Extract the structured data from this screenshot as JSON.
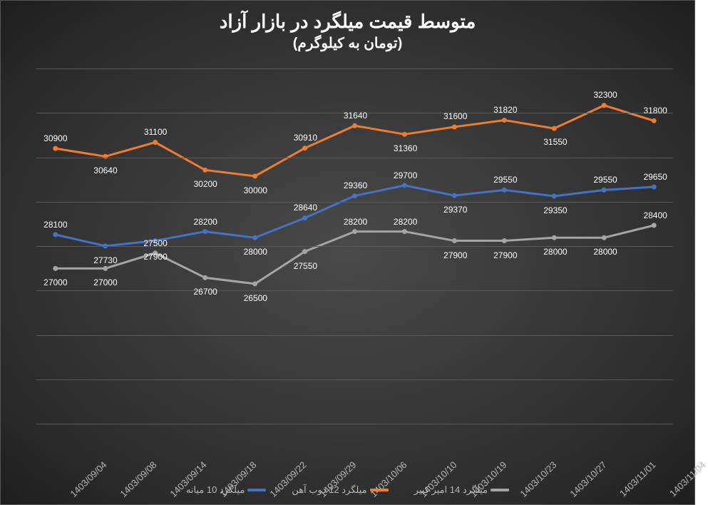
{
  "title": "متوسط قیمت میلگرد در بازار آزاد",
  "subtitle": "(تومان به کیلوگرم)",
  "type": "line",
  "background": "radial-dark-gray",
  "grid_color": "#5a5a5a",
  "text_color": "#ffffff",
  "axis_label_color": "#b8b8b8",
  "title_fontsize": 26,
  "subtitle_fontsize": 20,
  "datalabel_fontsize": 12,
  "xtick_fontsize": 13,
  "legend_fontsize": 13,
  "line_width": 3,
  "marker_size": 5,
  "ylim": [
    22000,
    33500
  ],
  "y_gridlines": 9,
  "x_rotation_deg": -44,
  "categories": [
    "1403/09/04",
    "1403/09/08",
    "1403/09/14",
    "1403/09/18",
    "1403/09/22",
    "1403/09/29",
    "1403/10/06",
    "1403/10/10",
    "1403/10/19",
    "1403/10/23",
    "1403/10/27",
    "1403/11/01",
    "1403/11/04"
  ],
  "series": [
    {
      "name": "میلگرد 10 میانه",
      "color": "#4472c4",
      "values": [
        28100,
        27730,
        27900,
        28200,
        28000,
        28640,
        29360,
        29700,
        29370,
        29550,
        29350,
        29550,
        29650
      ],
      "label_dy": [
        -8,
        12,
        14,
        -8,
        12,
        -8,
        -8,
        -8,
        12,
        -8,
        12,
        -8,
        -8
      ]
    },
    {
      "name": "میلگرد 12 ذوب آهن",
      "color": "#ed7d31",
      "values": [
        30900,
        30640,
        31100,
        30200,
        30000,
        30910,
        31640,
        31360,
        31600,
        31820,
        31550,
        32300,
        31800
      ],
      "label_dy": [
        -8,
        12,
        -8,
        12,
        12,
        -8,
        -8,
        12,
        -8,
        -8,
        12,
        -8,
        -8
      ]
    },
    {
      "name": "میلگرد 14 امیر کبیر",
      "color": "#a5a5a5",
      "values": [
        27000,
        27000,
        27500,
        26700,
        26500,
        27550,
        28200,
        28200,
        27900,
        27900,
        28000,
        28000,
        28400
      ],
      "label_dy": [
        12,
        12,
        -8,
        12,
        12,
        12,
        -8,
        -8,
        12,
        12,
        12,
        12,
        -8
      ]
    }
  ],
  "legend_position": "bottom-center"
}
